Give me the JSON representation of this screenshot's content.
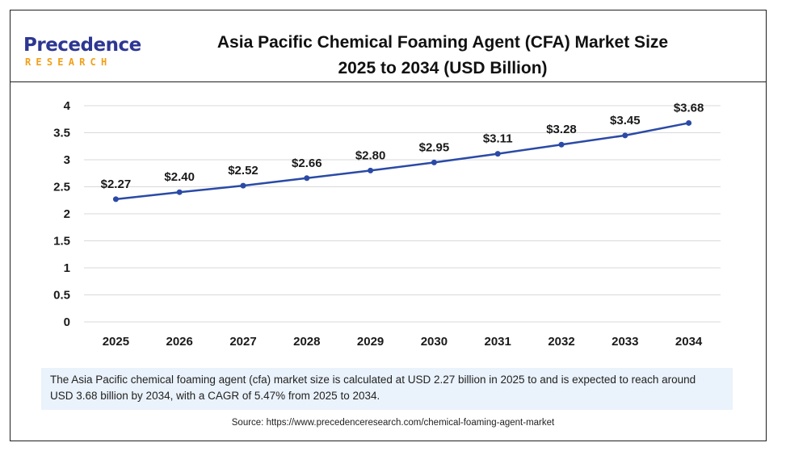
{
  "brand": {
    "logo_main_initial": "P",
    "logo_main_rest": "recedence",
    "logo_sub": "RESEARCH",
    "logo_color": "#2d3792",
    "logo_accent": "#f0a019"
  },
  "header": {
    "title_line1": "Asia Pacific Chemical Foaming Agent (CFA) Market Size",
    "title_line2": "2025 to 2034 (USD Billion)"
  },
  "chart_data": {
    "type": "line",
    "categories": [
      "2025",
      "2026",
      "2027",
      "2028",
      "2029",
      "2030",
      "2031",
      "2032",
      "2033",
      "2034"
    ],
    "values": [
      2.27,
      2.4,
      2.52,
      2.66,
      2.8,
      2.95,
      3.11,
      3.28,
      3.45,
      3.68
    ],
    "data_labels": [
      "$2.27",
      "$2.40",
      "$2.52",
      "$2.66",
      "$2.80",
      "$2.95",
      "$3.11",
      "$3.28",
      "$3.45",
      "$3.68"
    ],
    "y_ticks": [
      "0",
      "0.5",
      "1",
      "1.5",
      "2",
      "2.5",
      "3",
      "3.5",
      "4"
    ],
    "ylim": [
      0,
      4
    ],
    "grid": true,
    "legend": "none",
    "line_color": "#2a4aa6",
    "grid_color": "#d9d9d9"
  },
  "note": {
    "text": "The Asia Pacific chemical foaming agent (cfa) market size is calculated at USD 2.27 billion in 2025 to and is expected to reach around USD 3.68 billion by 2034, with a CAGR of 5.47% from 2025 to 2034.",
    "background": "#eaf2fb"
  },
  "source": {
    "text": "Source: https://www.precedenceresearch.com/chemical-foaming-agent-market"
  }
}
